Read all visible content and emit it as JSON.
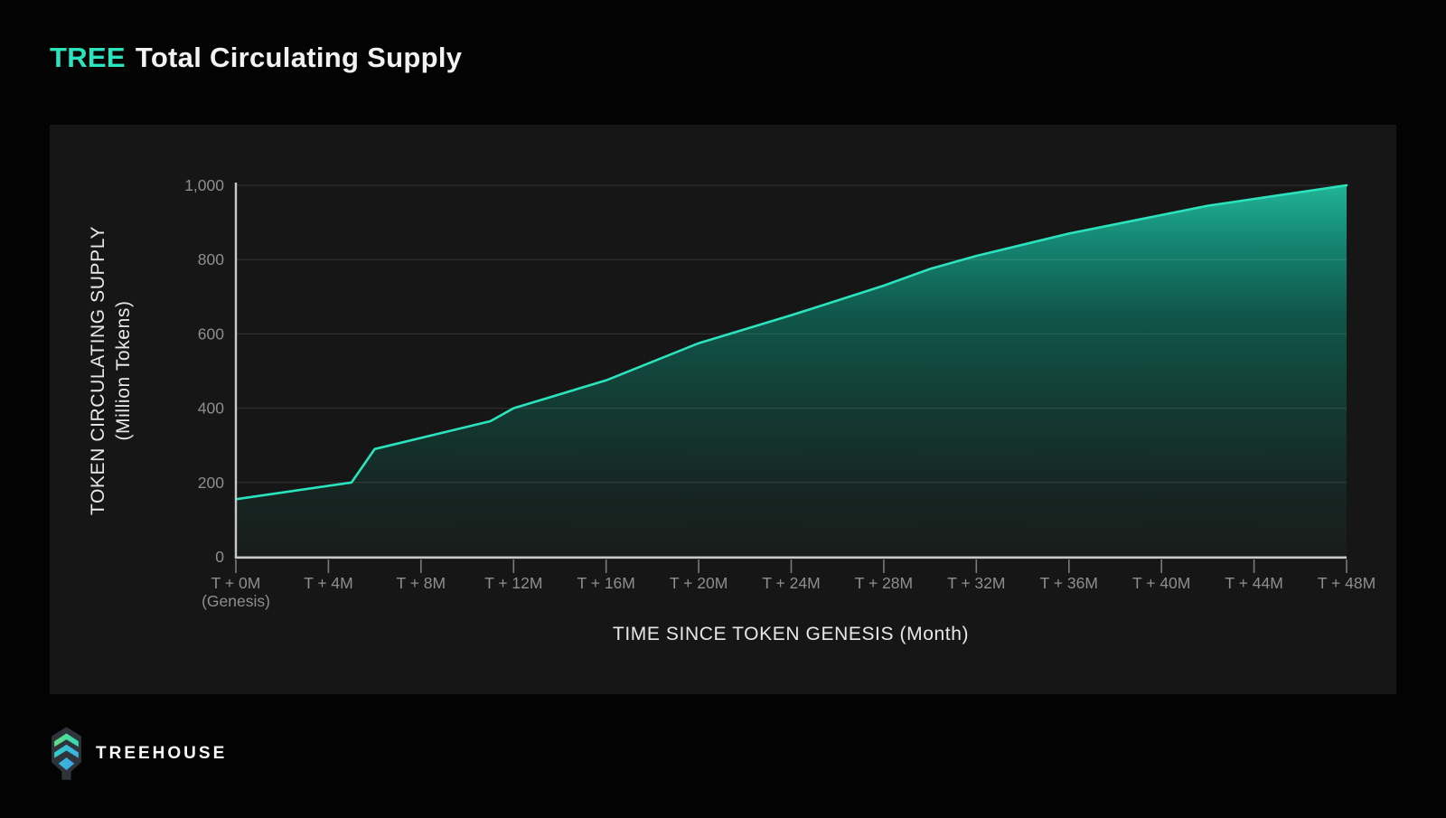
{
  "page": {
    "title_accent": "TREE",
    "title_rest": "Total Circulating Supply"
  },
  "footer": {
    "brand": "TREEHOUSE",
    "logo_icon": "treehouse-logo-icon"
  },
  "colors": {
    "accent": "#2BE3BC",
    "line": "#2BE3BC",
    "page_bg": "#030303",
    "panel_bg": "#161616",
    "spine": "#C9C9C9",
    "tick_mark": "#7A7A7A",
    "tick_label": "#8E8E8E",
    "axis_label": "#E8E8E8",
    "gridline": "rgba(255,255,255,0.12)",
    "area_gradient_top": "#21B496",
    "area_gradient_mid": "#10564A",
    "area_gradient_bottom": "#181C1B"
  },
  "chart_data": {
    "type": "area",
    "title": "TREE Total Circulating Supply",
    "xlabel": "TIME SINCE TOKEN GENESIS (Month)",
    "ylabel_line1": "TOKEN CIRCULATING SUPPLY",
    "ylabel_line2": "(Million Tokens)",
    "x_unit": "months since token genesis",
    "y_unit": "million tokens",
    "xlim": [
      0,
      48
    ],
    "ylim": [
      0,
      1000
    ],
    "grid": "horizontal gridlines only",
    "legend": "none",
    "x_tick_months": [
      0,
      4,
      8,
      12,
      16,
      20,
      24,
      28,
      32,
      36,
      40,
      44,
      48
    ],
    "x_ticks": [
      [
        "T + 0M",
        "(Genesis)"
      ],
      [
        "T + 4M"
      ],
      [
        "T + 8M"
      ],
      [
        "T + 12M"
      ],
      [
        "T + 16M"
      ],
      [
        "T + 20M"
      ],
      [
        "T + 24M"
      ],
      [
        "T + 28M"
      ],
      [
        "T + 32M"
      ],
      [
        "T + 36M"
      ],
      [
        "T + 40M"
      ],
      [
        "T + 44M"
      ],
      [
        "T + 48M"
      ]
    ],
    "y_tick_values": [
      0,
      200,
      400,
      600,
      800,
      1000
    ],
    "y_ticks": [
      "0",
      "200",
      "400",
      "600",
      "800",
      "1,000"
    ],
    "series": [
      {
        "name": "TREE circulating supply (million tokens)",
        "points": [
          [
            0,
            155
          ],
          [
            5,
            200
          ],
          [
            6,
            290
          ],
          [
            11,
            365
          ],
          [
            12,
            400
          ],
          [
            16,
            475
          ],
          [
            20,
            575
          ],
          [
            24,
            650
          ],
          [
            28,
            730
          ],
          [
            30,
            775
          ],
          [
            32,
            810
          ],
          [
            36,
            870
          ],
          [
            40,
            920
          ],
          [
            42,
            945
          ],
          [
            48,
            1000
          ]
        ]
      }
    ]
  }
}
